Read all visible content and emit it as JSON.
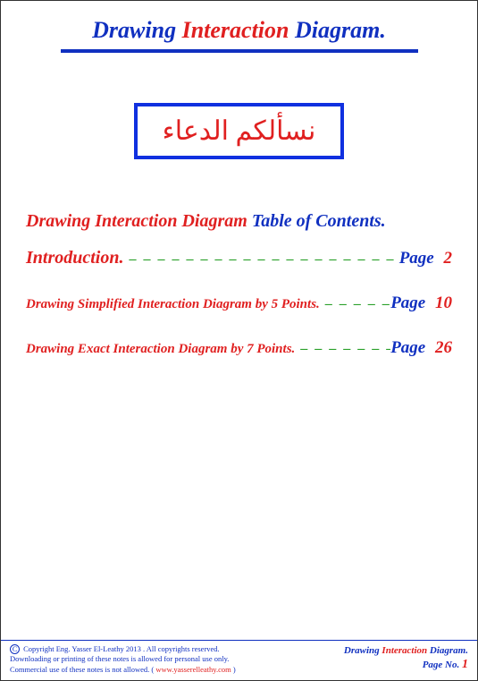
{
  "header": {
    "drawing": "Drawing",
    "interaction": "Interaction",
    "diagram": "Diagram."
  },
  "arabic_box": "نسألكم الدعاء",
  "toc": {
    "heading_red": "Drawing Interaction Diagram",
    "heading_blue": "Table of Contents.",
    "leader": "– – – – – – – – – – – – – – – – – – – – – – – – – – – – – – – –",
    "rows": [
      {
        "label": "Introduction.",
        "size": "lg",
        "page_word": "Page",
        "page_num": "2"
      },
      {
        "label": "Drawing Simplified Interaction Diagram by 5 Points.",
        "size": "sm",
        "page_word": "Page",
        "page_num": "10"
      },
      {
        "label": "Drawing Exact Interaction Diagram by 7 Points.",
        "size": "sm",
        "page_word": "Page",
        "page_num": "26"
      }
    ]
  },
  "footer": {
    "copyright_line1a": "Copyright Eng. Yasser El-Leathy 2013 . All copyrights reserved.",
    "copyright_line2": "Downloading or printing of these notes is allowed for personal use only.",
    "copyright_line3a": "Commercial use of these notes is not allowed.     ( ",
    "website": "www.yasserelleathy.com",
    "copyright_line3b": " )",
    "right_drawing": "Drawing",
    "right_interaction": "Interaction",
    "right_diagram": "Diagram.",
    "pageno_label": "Page No.",
    "pageno_num": "1"
  }
}
